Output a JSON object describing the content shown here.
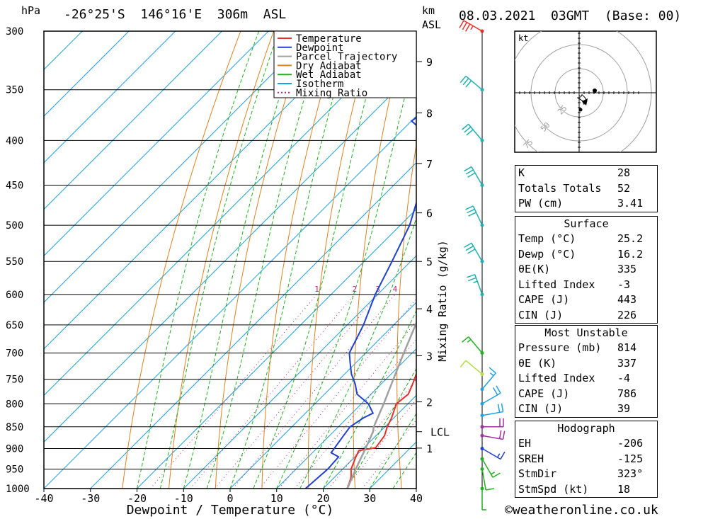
{
  "header": {
    "location": "-26°25'S  146°16'E  306m  ASL",
    "datetime": "08.03.2021  03GMT  (Base: 00)",
    "hpa_unit": "hPa",
    "km_unit": "km",
    "asl_unit": "ASL"
  },
  "chart_data": {
    "type": "line",
    "title": "-26°25'S 146°16'E 306m ASL",
    "xlabel": "Dewpoint / Temperature (°C)",
    "ylabel": "hPa",
    "xlim": [
      -40,
      40
    ],
    "ylim": [
      1000,
      300
    ],
    "yscale": "log",
    "skew_deg_per_decade_hpa": 72,
    "x_ticks": [
      -40,
      -30,
      -20,
      -10,
      0,
      10,
      20,
      30,
      40
    ],
    "pressure_ticks": [
      300,
      350,
      400,
      450,
      500,
      550,
      600,
      650,
      700,
      750,
      800,
      850,
      900,
      950,
      1000
    ],
    "height_axis": {
      "label": "km ASL",
      "ticks": [
        {
          "km": "1",
          "p": 899
        },
        {
          "km": "2",
          "p": 796
        },
        {
          "km": "3",
          "p": 705
        },
        {
          "km": "4",
          "p": 623
        },
        {
          "km": "5",
          "p": 550
        },
        {
          "km": "6",
          "p": 484
        },
        {
          "km": "7",
          "p": 425
        },
        {
          "km": "8",
          "p": 372
        },
        {
          "km": "9",
          "p": 325
        }
      ],
      "lcl": {
        "label": "LCL",
        "p": 861
      }
    },
    "mixing_ratio_axis": {
      "label": "Mixing Ratio (g/kg)",
      "label_pressure": 600,
      "values": [
        1,
        2,
        3,
        4,
        6,
        8,
        10,
        16,
        20,
        25
      ]
    },
    "legend": {
      "placement": "top-right",
      "items": [
        {
          "name": "Temperature",
          "color": "#e8302a",
          "style": "solid"
        },
        {
          "name": "Dewpoint",
          "color": "#2040d0",
          "style": "solid"
        },
        {
          "name": "Parcel Trajectory",
          "color": "#a0a0a0",
          "style": "solid"
        },
        {
          "name": "Dry Adiabat",
          "color": "#e08020",
          "style": "solid"
        },
        {
          "name": "Wet Adiabat",
          "color": "#20b020",
          "style": "solid"
        },
        {
          "name": "Isotherm",
          "color": "#20a0e0",
          "style": "solid"
        },
        {
          "name": "Mixing Ratio",
          "color": "#c0207a",
          "style": "dotted"
        }
      ]
    },
    "series": [
      {
        "name": "Temperature",
        "points": [
          [
            1000,
            25.2
          ],
          [
            970,
            23.5
          ],
          [
            950,
            21.8
          ],
          [
            920,
            20.2
          ],
          [
            905,
            19.5
          ],
          [
            898,
            22.5
          ],
          [
            870,
            21.8
          ],
          [
            850,
            20.5
          ],
          [
            830,
            19.5
          ],
          [
            800,
            17.5
          ],
          [
            780,
            18.0
          ],
          [
            760,
            16.8
          ],
          [
            720,
            14.0
          ],
          [
            700,
            12.2
          ],
          [
            650,
            7.8
          ],
          [
            600,
            3.0
          ],
          [
            580,
            2.0
          ],
          [
            550,
            0.0
          ],
          [
            500,
            -4.5
          ],
          [
            450,
            -9.5
          ],
          [
            400,
            -16.0
          ],
          [
            350,
            -23.0
          ],
          [
            320,
            -27.5
          ],
          [
            310,
            -29.0
          ],
          [
            300,
            -31.0
          ]
        ]
      },
      {
        "name": "Dewpoint",
        "points": [
          [
            1000,
            16.2
          ],
          [
            950,
            16.8
          ],
          [
            920,
            16.5
          ],
          [
            910,
            14.0
          ],
          [
            870,
            13.0
          ],
          [
            850,
            12.5
          ],
          [
            830,
            13.5
          ],
          [
            820,
            14.5
          ],
          [
            800,
            11.5
          ],
          [
            780,
            7.0
          ],
          [
            760,
            4.5
          ],
          [
            740,
            1.5
          ],
          [
            720,
            -1.0
          ],
          [
            700,
            -3.5
          ],
          [
            650,
            -6.5
          ],
          [
            600,
            -10.5
          ],
          [
            550,
            -14.0
          ],
          [
            500,
            -18.0
          ],
          [
            450,
            -24.0
          ],
          [
            420,
            -27.0
          ],
          [
            400,
            -31.0
          ],
          [
            380,
            -40.0
          ],
          [
            350,
            -37.0
          ],
          [
            330,
            -34.0
          ],
          [
            325,
            -42.0
          ],
          [
            310,
            -59.0
          ],
          [
            305,
            -53.0
          ],
          [
            300,
            -49.0
          ]
        ]
      },
      {
        "name": "Parcel Trajectory",
        "points": [
          [
            1000,
            25.2
          ],
          [
            950,
            22.8
          ],
          [
            900,
            20.5
          ],
          [
            861,
            18.5
          ],
          [
            850,
            17.6
          ],
          [
            800,
            14.8
          ],
          [
            750,
            11.6
          ],
          [
            700,
            8.2
          ],
          [
            650,
            4.7
          ],
          [
            600,
            0.9
          ],
          [
            550,
            -3.3
          ],
          [
            500,
            -8.0
          ],
          [
            450,
            -13.4
          ],
          [
            400,
            -19.8
          ],
          [
            350,
            -27.2
          ],
          [
            300,
            -36.0
          ]
        ]
      }
    ],
    "background": {
      "dry_adiabats_theta_K": [
        250,
        260,
        270,
        280,
        290,
        300,
        310,
        320,
        330,
        340,
        350,
        360,
        370,
        380,
        390,
        400,
        410,
        420,
        430,
        440,
        450,
        460,
        470,
        480,
        490
      ],
      "wet_adiabats_theta_w_C": [
        -20,
        -15,
        -10,
        -5,
        0,
        5,
        10,
        15,
        20,
        25,
        30,
        35,
        40
      ],
      "isotherms_C": [
        -130,
        -120,
        -110,
        -100,
        -90,
        -80,
        -70,
        -60,
        -50,
        -40,
        -30,
        -20,
        -10,
        0,
        10,
        20,
        30,
        40
      ]
    },
    "wind_profile": {
      "levels": [
        {
          "p": 1000,
          "dir": 180,
          "spd": 5,
          "color": "#20b020"
        },
        {
          "p": 950,
          "dir": 170,
          "spd": 10,
          "color": "#20b020"
        },
        {
          "p": 925,
          "dir": 150,
          "spd": 15,
          "color": "#20b020"
        },
        {
          "p": 900,
          "dir": 120,
          "spd": 15,
          "color": "#2040d0"
        },
        {
          "p": 870,
          "dir": 100,
          "spd": 20,
          "color": "#a030a0"
        },
        {
          "p": 850,
          "dir": 90,
          "spd": 20,
          "color": "#a030a0"
        },
        {
          "p": 825,
          "dir": 80,
          "spd": 20,
          "color": "#20a0e0"
        },
        {
          "p": 800,
          "dir": 60,
          "spd": 20,
          "color": "#20a0e0"
        },
        {
          "p": 770,
          "dir": 40,
          "spd": 15,
          "color": "#20a0e0"
        },
        {
          "p": 740,
          "dir": 310,
          "spd": 10,
          "color": "#b0e040"
        },
        {
          "p": 700,
          "dir": 320,
          "spd": 15,
          "color": "#20b020"
        },
        {
          "p": 600,
          "dir": 340,
          "spd": 25,
          "color": "#20b0b0"
        },
        {
          "p": 550,
          "dir": 330,
          "spd": 30,
          "color": "#20b0b0"
        },
        {
          "p": 500,
          "dir": 335,
          "spd": 30,
          "color": "#20b0b0"
        },
        {
          "p": 450,
          "dir": 330,
          "spd": 30,
          "color": "#20b0b0"
        },
        {
          "p": 400,
          "dir": 320,
          "spd": 30,
          "color": "#20b0b0"
        },
        {
          "p": 350,
          "dir": 310,
          "spd": 30,
          "color": "#20b0b0"
        },
        {
          "p": 300,
          "dir": 300,
          "spd": 35,
          "color": "#e8302a"
        }
      ]
    },
    "hodograph": {
      "unit_label": "kt",
      "rings_kt": [
        25,
        50,
        75
      ],
      "points": [
        [
          0,
          -3
        ],
        [
          2,
          -4
        ],
        [
          3,
          -2
        ],
        [
          6,
          -5
        ],
        [
          8,
          -9
        ],
        [
          5,
          -12
        ],
        [
          3,
          -8
        ],
        [
          -2,
          -5
        ]
      ],
      "storm_motion": {
        "dir": 323,
        "spd": 18
      }
    }
  },
  "indices": {
    "general": [
      {
        "label": "K",
        "value": "28"
      },
      {
        "label": "Totals Totals",
        "value": "52"
      },
      {
        "label": "PW (cm)",
        "value": "3.41"
      }
    ],
    "surface_title": "Surface",
    "surface": [
      {
        "label": "Temp (°C)",
        "value": "25.2"
      },
      {
        "label": "Dewp (°C)",
        "value": "16.2"
      },
      {
        "label": "θE(K)",
        "value": "335"
      },
      {
        "label": "Lifted Index",
        "value": "-3"
      },
      {
        "label": "CAPE (J)",
        "value": "443"
      },
      {
        "label": "CIN (J)",
        "value": "226"
      }
    ],
    "mu_title": "Most Unstable",
    "mu": [
      {
        "label": "Pressure (mb)",
        "value": "814"
      },
      {
        "label": "θE (K)",
        "value": "337"
      },
      {
        "label": "Lifted Index",
        "value": "-4"
      },
      {
        "label": "CAPE (J)",
        "value": "786"
      },
      {
        "label": "CIN (J)",
        "value": "39"
      }
    ],
    "hodo_title": "Hodograph",
    "hodo": [
      {
        "label": "EH",
        "value": "-206"
      },
      {
        "label": "SREH",
        "value": "-125"
      },
      {
        "label": "StmDir",
        "value": "323°"
      },
      {
        "label": "StmSpd (kt)",
        "value": "18"
      }
    ]
  },
  "footer": "©weatheronline.co.uk"
}
